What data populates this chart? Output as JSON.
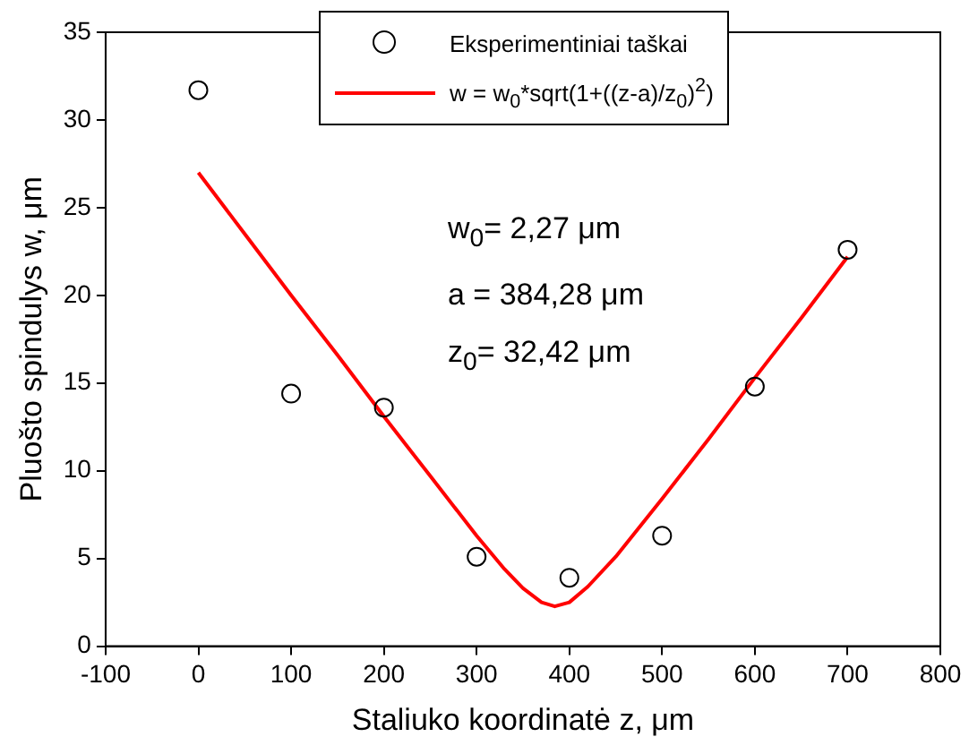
{
  "chart_data": {
    "type": "scatter",
    "xlabel": "Staliuko koordinatė z, μm",
    "ylabel": "Pluošto spindulys w, μm",
    "xlim": [
      -100,
      800
    ],
    "xticks": [
      -100,
      0,
      100,
      200,
      300,
      400,
      500,
      600,
      700,
      800
    ],
    "ylim": [
      0,
      35
    ],
    "yticks": [
      0,
      5,
      10,
      15,
      20,
      25,
      30,
      35
    ],
    "grid": false,
    "legend": "top right",
    "series": [
      {
        "name": "Eksperimentiniai taškai",
        "marker": "circle",
        "color": "#000000",
        "x": [
          0,
          100,
          200,
          300,
          400,
          500,
          600,
          700
        ],
        "values": [
          31.7,
          14.4,
          13.6,
          5.1,
          3.9,
          6.3,
          14.8,
          22.6
        ]
      },
      {
        "name": "w = w$_{0}$*sqrt(1+((z-a)/z$_{0}$)$^{2}$)",
        "type": "line",
        "marker": "none",
        "line_style": "solid",
        "color": "#ff0000",
        "x": [
          0,
          50,
          100,
          150,
          200,
          250,
          300,
          330,
          350,
          370,
          384.28,
          400,
          420,
          450,
          500,
          550,
          600,
          650,
          700
        ],
        "values": [
          27.0,
          23.5,
          20.0,
          16.6,
          13.1,
          9.7,
          6.3,
          4.4,
          3.3,
          2.5,
          2.27,
          2.5,
          3.4,
          5.1,
          8.4,
          11.8,
          15.3,
          18.7,
          22.2
        ]
      }
    ],
    "annotations": [
      "w$_{0}$= 2,27 μm",
      "a = 384,28 μm",
      "z$_{0}$= 32,42 μm"
    ]
  }
}
